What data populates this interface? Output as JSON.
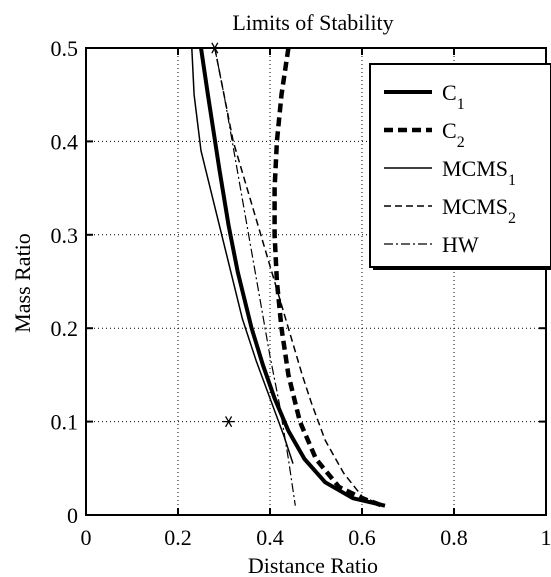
{
  "chart_data": {
    "type": "line",
    "title": "Limits of Stability",
    "xlabel": "Distance Ratio",
    "ylabel": "Mass Ratio",
    "xlim": [
      0,
      1
    ],
    "ylim": [
      0,
      0.5
    ],
    "xticks": [
      0,
      0.2,
      0.4,
      0.6,
      0.8,
      1
    ],
    "xtick_labels": [
      "0",
      "0.2",
      "0.4",
      "0.6",
      "0.8",
      "1"
    ],
    "yticks": [
      0,
      0.1,
      0.2,
      0.3,
      0.4,
      0.5
    ],
    "ytick_labels": [
      "0",
      "0.1",
      "0.2",
      "0.3",
      "0.4",
      "0.5"
    ],
    "grid": true,
    "legend_position": "top-right",
    "series": [
      {
        "name": "C",
        "subscript": "1",
        "style": "solid-thick",
        "x": [
          0.25,
          0.265,
          0.29,
          0.31,
          0.33,
          0.36,
          0.385,
          0.41,
          0.44,
          0.475,
          0.52,
          0.58,
          0.65
        ],
        "y": [
          0.5,
          0.45,
          0.37,
          0.31,
          0.26,
          0.2,
          0.16,
          0.125,
          0.09,
          0.06,
          0.035,
          0.018,
          0.01
        ]
      },
      {
        "name": "C",
        "subscript": "2",
        "style": "dashed-thick",
        "x": [
          0.44,
          0.425,
          0.415,
          0.41,
          0.41,
          0.415,
          0.425,
          0.44,
          0.465,
          0.5,
          0.55,
          0.6,
          0.645
        ],
        "y": [
          0.5,
          0.45,
          0.4,
          0.35,
          0.3,
          0.25,
          0.2,
          0.15,
          0.1,
          0.06,
          0.03,
          0.018,
          0.01
        ]
      },
      {
        "name": "MCMS",
        "subscript": "1",
        "style": "solid-thin",
        "x": [
          0.23,
          0.235,
          0.25,
          0.28,
          0.31,
          0.34,
          0.37,
          0.4,
          0.43,
          0.45
        ],
        "y": [
          0.5,
          0.45,
          0.39,
          0.33,
          0.27,
          0.21,
          0.165,
          0.125,
          0.085,
          0.055
        ]
      },
      {
        "name": "MCMS",
        "subscript": "2",
        "style": "dashed-thin",
        "x": [
          0.28,
          0.3,
          0.32,
          0.35,
          0.38,
          0.41,
          0.44,
          0.47,
          0.49,
          0.52,
          0.56,
          0.6,
          0.645
        ],
        "y": [
          0.5,
          0.45,
          0.4,
          0.35,
          0.3,
          0.25,
          0.2,
          0.15,
          0.12,
          0.08,
          0.045,
          0.02,
          0.01
        ]
      },
      {
        "name": "HW",
        "subscript": "",
        "style": "dashdot-thin",
        "x": [
          0.28,
          0.3,
          0.325,
          0.35,
          0.375,
          0.4,
          0.42,
          0.44,
          0.455
        ],
        "y": [
          0.5,
          0.45,
          0.38,
          0.31,
          0.24,
          0.17,
          0.12,
          0.06,
          0.01
        ]
      }
    ],
    "markers": [
      {
        "symbol": "*",
        "x": 0.28,
        "y": 0.5
      },
      {
        "symbol": "*",
        "x": 0.31,
        "y": 0.1
      }
    ]
  }
}
